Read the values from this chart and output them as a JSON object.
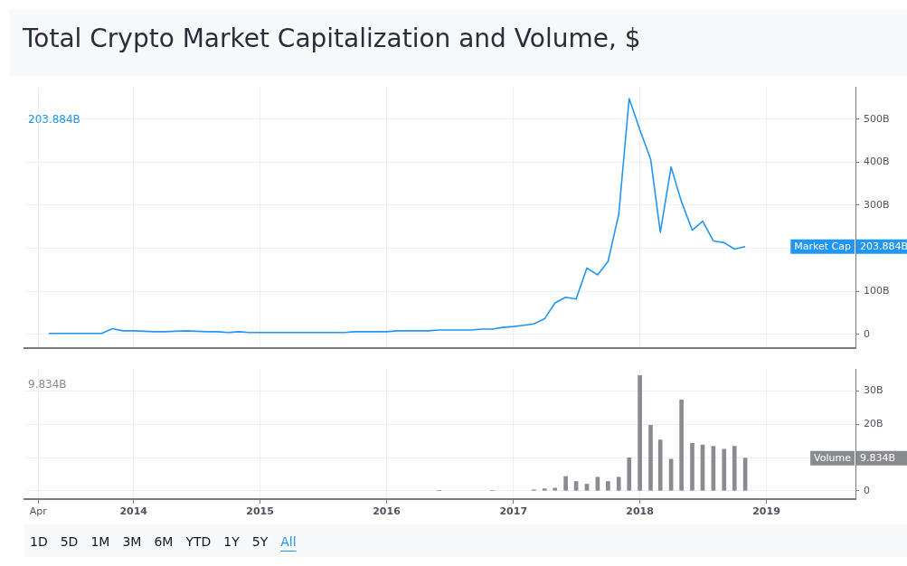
{
  "chart_data": [
    {
      "type": "line",
      "title": "Total Crypto Market Capitalization and Volume, $",
      "x": [
        "2013-05",
        "2013-06",
        "2013-07",
        "2013-08",
        "2013-09",
        "2013-10",
        "2013-11",
        "2013-12",
        "2014-01",
        "2014-02",
        "2014-03",
        "2014-04",
        "2014-05",
        "2014-06",
        "2014-07",
        "2014-08",
        "2014-09",
        "2014-10",
        "2014-11",
        "2014-12",
        "2015-01",
        "2015-02",
        "2015-03",
        "2015-04",
        "2015-05",
        "2015-06",
        "2015-07",
        "2015-08",
        "2015-09",
        "2015-10",
        "2015-11",
        "2015-12",
        "2016-01",
        "2016-02",
        "2016-03",
        "2016-04",
        "2016-05",
        "2016-06",
        "2016-07",
        "2016-08",
        "2016-09",
        "2016-10",
        "2016-11",
        "2016-12",
        "2017-01",
        "2017-02",
        "2017-03",
        "2017-04",
        "2017-05",
        "2017-06",
        "2017-07",
        "2017-08",
        "2017-09",
        "2017-10",
        "2017-11",
        "2017-12",
        "2018-01",
        "2018-02",
        "2018-03",
        "2018-04",
        "2018-05",
        "2018-06",
        "2018-07",
        "2018-08",
        "2018-09",
        "2018-10",
        "2018-11"
      ],
      "series": [
        {
          "name": "Market Cap",
          "color": "#2196f3",
          "values": [
            2,
            2,
            2,
            2,
            2,
            2,
            13,
            8,
            8,
            7,
            6,
            6,
            7,
            8,
            7,
            6,
            6,
            4,
            6,
            4,
            4,
            4,
            4,
            4,
            4,
            4,
            4,
            4,
            4,
            6,
            6,
            6,
            6,
            8,
            8,
            8,
            8,
            10,
            10,
            10,
            10,
            12,
            12,
            16,
            18,
            21,
            24,
            36,
            73,
            86,
            82,
            154,
            138,
            169,
            279,
            548,
            475,
            407,
            237,
            389,
            308,
            242,
            263,
            217,
            213,
            198,
            203.884
          ]
        }
      ],
      "xlim": [
        "2013-02-20",
        "2019-09-15"
      ],
      "xticks": [
        {
          "value": "2013-04",
          "label": null
        },
        {
          "value": "2014",
          "label": null
        },
        {
          "value": "2015",
          "label": null
        },
        {
          "value": "2016",
          "label": null
        },
        {
          "value": "2017",
          "label": null
        },
        {
          "value": "2018",
          "label": null
        },
        {
          "value": "2019",
          "label": null
        }
      ],
      "ylim": [
        -33,
        574
      ],
      "yticks": [
        0,
        {
          "value": 100,
          "label": "100B"
        },
        {
          "value": 200,
          "label": null
        },
        {
          "value": 300,
          "label": "300B"
        },
        {
          "value": 400,
          "label": "400B"
        },
        {
          "value": 500,
          "label": "500B"
        }
      ],
      "tick_labels": "y",
      "grid": true,
      "marker": "none",
      "line_style": "solid",
      "annotations": [
        "203.884B",
        "203.884B"
      ]
    },
    {
      "type": "bar",
      "x": [
        "2016-06",
        "2016-11",
        "2017-03",
        "2017-04",
        "2017-05",
        "2017-06",
        "2017-07",
        "2017-08",
        "2017-09",
        "2017-10",
        "2017-11",
        "2017-12",
        "2018-01",
        "2018-02",
        "2018-03",
        "2018-04",
        "2018-05",
        "2018-06",
        "2018-07",
        "2018-08",
        "2018-09",
        "2018-10",
        "2018-11"
      ],
      "series": [
        {
          "name": "Volume",
          "color": "#8a8b90",
          "values": [
            0.1,
            0.1,
            0.3,
            0.6,
            0.8,
            4.3,
            2.8,
            2,
            4.1,
            2.8,
            4.1,
            9.9,
            34.7,
            19.7,
            15.3,
            9.5,
            27.3,
            14.3,
            13.8,
            13.4,
            12.5,
            13.4,
            9.834
          ]
        }
      ],
      "xlim": [
        "2013-02-20",
        "2019-09-15"
      ],
      "xticks": [
        {
          "value": "2013-04",
          "label": "Apr"
        },
        "2014",
        "2015",
        "2016",
        "2017",
        "2018",
        "2019"
      ],
      "ylim": [
        -2.5,
        36.5
      ],
      "yticks": [
        0,
        {
          "value": 10,
          "label": null
        },
        {
          "value": 20,
          "label": "20B"
        },
        {
          "value": 30,
          "label": "30B"
        }
      ],
      "grid": true,
      "annotations": [
        "9.834B",
        "9.834B",
        "1D",
        "5D",
        "1M",
        "3M",
        "6M",
        "YTD",
        "1Y",
        "5Y",
        "All"
      ]
    }
  ]
}
